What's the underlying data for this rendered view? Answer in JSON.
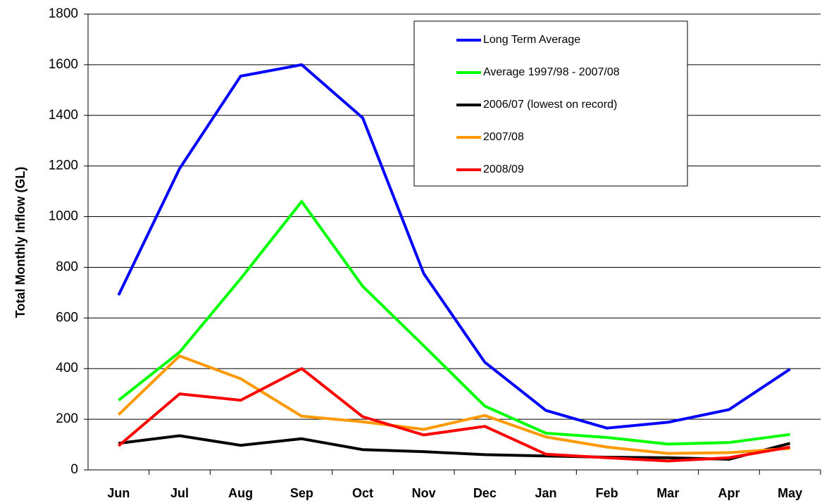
{
  "chart_data": {
    "type": "line",
    "y_label": "Total Monthly Inflow (GL)",
    "categories": [
      "Jun",
      "Jul",
      "Aug",
      "Sep",
      "Oct",
      "Nov",
      "Dec",
      "Jan",
      "Feb",
      "Mar",
      "Apr",
      "May"
    ],
    "series": [
      {
        "name": "Long Term Average",
        "color": "#0000ff",
        "values": [
          690,
          1190,
          1555,
          1600,
          1390,
          775,
          425,
          235,
          165,
          188,
          238,
          398
        ]
      },
      {
        "name": "Average 1997/98 - 2007/08",
        "color": "#00ff00",
        "values": [
          275,
          465,
          755,
          1060,
          725,
          490,
          252,
          145,
          128,
          102,
          108,
          140
        ]
      },
      {
        "name": "2006/07 (lowest on record)",
        "color": "#000000",
        "values": [
          105,
          135,
          97,
          123,
          80,
          72,
          60,
          55,
          50,
          48,
          42,
          105
        ]
      },
      {
        "name": "2007/08",
        "color": "#ff9900",
        "values": [
          218,
          450,
          360,
          212,
          190,
          160,
          215,
          130,
          90,
          65,
          68,
          85
        ]
      },
      {
        "name": "2008/09",
        "color": "#ff0000",
        "values": [
          95,
          300,
          275,
          400,
          210,
          138,
          172,
          62,
          48,
          35,
          48,
          90
        ]
      }
    ],
    "ylim": [
      0,
      1800
    ],
    "yticks": [
      0,
      200,
      400,
      600,
      800,
      1000,
      1200,
      1400,
      1600,
      1800
    ],
    "grid": true
  }
}
